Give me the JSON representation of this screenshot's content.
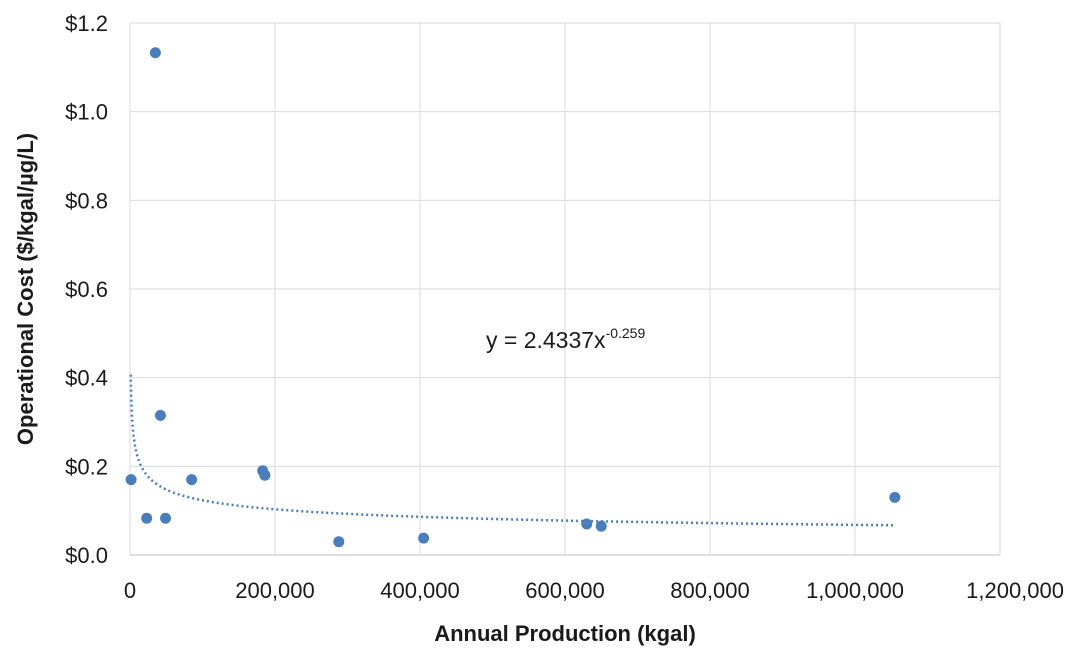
{
  "chart_data": {
    "type": "scatter",
    "title": "",
    "xlabel": "Annual Production (kgal)",
    "ylabel": "Operational Cost ($/kgal/µg/L)",
    "xlim": [
      0,
      1200000
    ],
    "ylim": [
      0,
      1.2
    ],
    "x_ticks": [
      0,
      200000,
      400000,
      600000,
      800000,
      1000000,
      1200000
    ],
    "x_tick_labels": [
      "0",
      "200,000",
      "400,000",
      "600,000",
      "800,000",
      "1,000,000",
      "1,200,000"
    ],
    "y_ticks": [
      0,
      0.2,
      0.4,
      0.6,
      0.8,
      1.0,
      1.2
    ],
    "y_tick_labels": [
      "$0.0",
      "$0.2",
      "$0.4",
      "$0.6",
      "$0.8",
      "$1.0",
      "$1.2"
    ],
    "grid": true,
    "marker_color": "#4a7ebb",
    "points": [
      {
        "x": 1500,
        "y": 0.17
      },
      {
        "x": 23000,
        "y": 0.083
      },
      {
        "x": 35000,
        "y": 1.133
      },
      {
        "x": 42000,
        "y": 0.315
      },
      {
        "x": 49000,
        "y": 0.083
      },
      {
        "x": 85000,
        "y": 0.17
      },
      {
        "x": 183000,
        "y": 0.19
      },
      {
        "x": 186000,
        "y": 0.18
      },
      {
        "x": 288000,
        "y": 0.03
      },
      {
        "x": 405000,
        "y": 0.038
      },
      {
        "x": 630000,
        "y": 0.07
      },
      {
        "x": 650000,
        "y": 0.065
      },
      {
        "x": 1055000,
        "y": 0.13
      }
    ],
    "trendline": {
      "type": "power",
      "coefficient": 2.4337,
      "exponent": -0.259,
      "x_range": [
        1000,
        1055000
      ],
      "style": "dotted",
      "label_base": "y = 2.4337x",
      "label_exponent": "-0.259"
    }
  }
}
